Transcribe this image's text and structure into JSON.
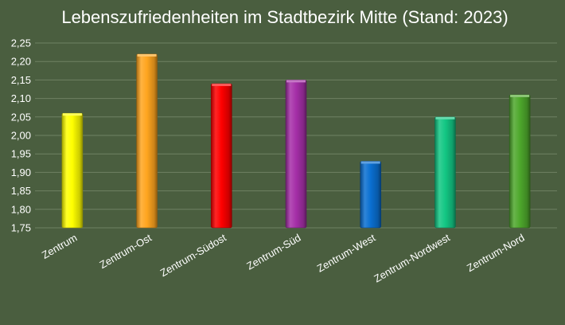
{
  "chart_data": {
    "type": "bar",
    "title": "Lebenszufriedenheiten im Stadtbezirk Mitte (Stand: 2023)",
    "xlabel": "",
    "ylabel": "",
    "categories": [
      "Zentrum",
      "Zentrum-Ost",
      "Zentrum-Südost",
      "Zentrum-Süd",
      "Zentrum-West",
      "Zentrum-Nordwest",
      "Zentrum-Nord"
    ],
    "values": [
      2.06,
      2.22,
      2.14,
      2.15,
      1.93,
      2.05,
      2.11
    ],
    "colors": [
      "#ffff00",
      "#ffa51f",
      "#ff0000",
      "#a52fa8",
      "#0a6fd1",
      "#13c784",
      "#4ea82c"
    ],
    "ylim": [
      1.75,
      2.25
    ],
    "yticks": [
      "1,75",
      "1,80",
      "1,85",
      "1,90",
      "1,95",
      "2,00",
      "2,05",
      "2,10",
      "2,15",
      "2,20",
      "2,25"
    ],
    "grid": true,
    "legend": "none"
  },
  "colors": {
    "background": "#4a5e3f",
    "gridline": "#6f8163"
  }
}
